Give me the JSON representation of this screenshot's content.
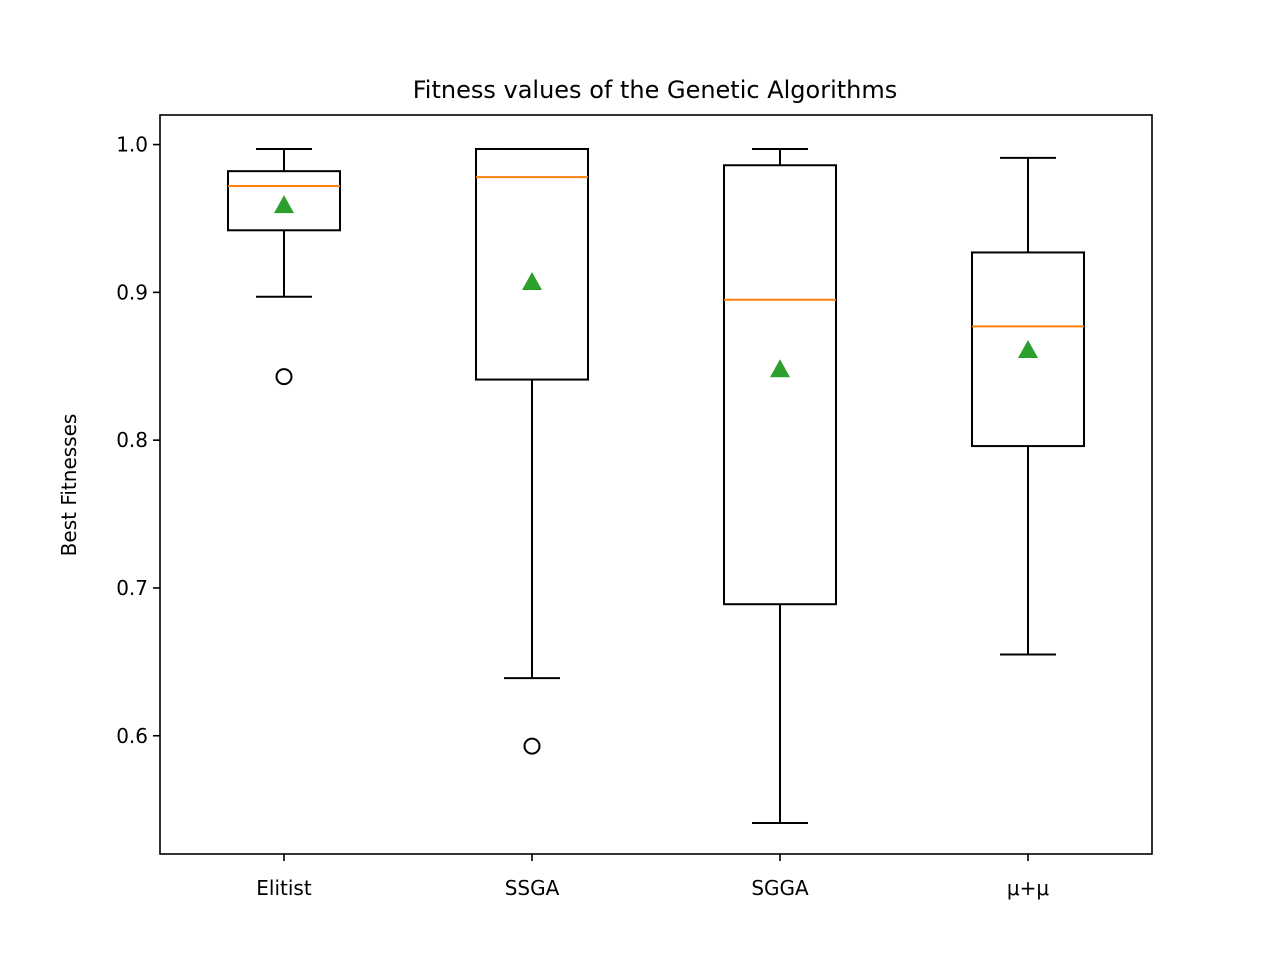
{
  "chart_data": {
    "type": "box",
    "title": "Fitness values of the Genetic Algorithms",
    "xlabel": "",
    "ylabel": "Best Fitnesses",
    "ylim": [
      0.52,
      1.02
    ],
    "yticks": [
      0.6,
      0.7,
      0.8,
      0.9,
      1.0
    ],
    "ytick_labels": [
      "0.6",
      "0.7",
      "0.8",
      "0.9",
      "1.0"
    ],
    "grid": false,
    "categories": [
      "Elitist",
      "SSGA",
      "SGGA",
      "μ+μ"
    ],
    "boxes": [
      {
        "category": "Elitist",
        "whisker_low": 0.897,
        "q1": 0.942,
        "median": 0.972,
        "q3": 0.982,
        "whisker_high": 0.997,
        "mean": 0.959,
        "outliers": [
          0.843
        ]
      },
      {
        "category": "SSGA",
        "whisker_low": 0.639,
        "q1": 0.841,
        "median": 0.978,
        "q3": 0.997,
        "whisker_high": 0.997,
        "mean": 0.907,
        "outliers": [
          0.593
        ]
      },
      {
        "category": "SGGA",
        "whisker_low": 0.541,
        "q1": 0.689,
        "median": 0.895,
        "q3": 0.986,
        "whisker_high": 0.997,
        "mean": 0.848,
        "outliers": []
      },
      {
        "category": "μ+μ",
        "whisker_low": 0.655,
        "q1": 0.796,
        "median": 0.877,
        "q3": 0.927,
        "whisker_high": 0.991,
        "mean": 0.861,
        "outliers": []
      }
    ],
    "colors": {
      "box": "#000000",
      "median": "#ff7f0e",
      "mean": "#2ca02c"
    }
  }
}
